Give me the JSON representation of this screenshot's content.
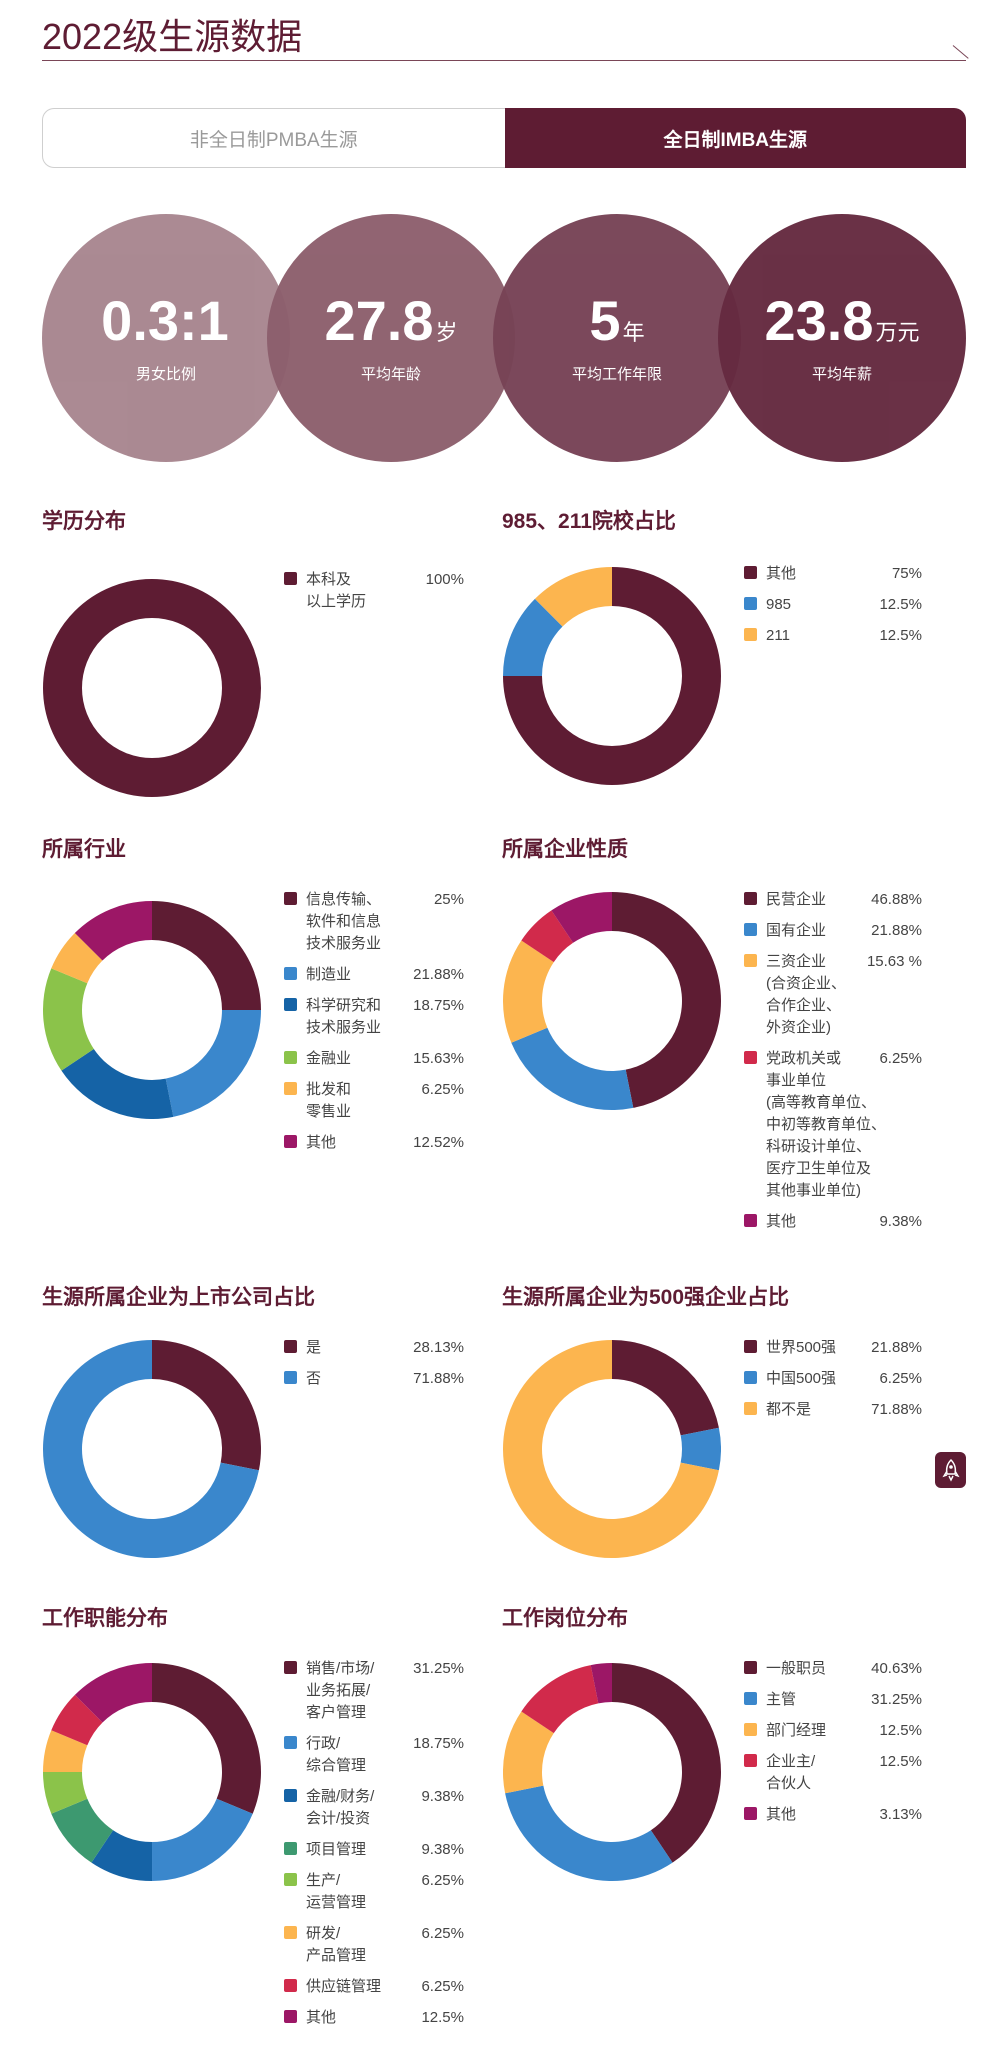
{
  "header": {
    "title": "2022级生源数据"
  },
  "tabs": [
    {
      "label": "非全日制PMBA生源",
      "active": false
    },
    {
      "label": "全日制IMBA生源",
      "active": true
    }
  ],
  "kpis": [
    {
      "value": "0.3:1",
      "unit": "",
      "label": "男女比例",
      "color": "#a8868f"
    },
    {
      "value": "27.8",
      "unit": "岁",
      "label": "平均年龄",
      "color": "#8d5f6d"
    },
    {
      "value": "5",
      "unit": "年",
      "label": "平均工作年限",
      "color": "#774356"
    },
    {
      "value": "23.8",
      "unit": "万元",
      "label": "平均年薪",
      "color": "#652a40"
    }
  ],
  "scroll_button": {
    "icon": "rocket-icon"
  },
  "chart_data": [
    {
      "type": "pie",
      "title": "学历分布",
      "slices": [
        {
          "name": "本科及\n以上学历",
          "value": 100,
          "label": "100%",
          "color": "#5e1c33"
        }
      ]
    },
    {
      "type": "pie",
      "title": "985、211院校占比",
      "slices": [
        {
          "name": "其他",
          "value": 75,
          "label": "75%",
          "color": "#5e1c33"
        },
        {
          "name": "985",
          "value": 12.5,
          "label": "12.5%",
          "color": "#3a87cc"
        },
        {
          "name": "211",
          "value": 12.5,
          "label": "12.5%",
          "color": "#fcb54f"
        }
      ]
    },
    {
      "type": "pie",
      "title": "所属行业",
      "slices": [
        {
          "name": "信息传输、\n软件和信息\n技术服务业",
          "value": 25,
          "label": "25%",
          "color": "#5e1c33"
        },
        {
          "name": "制造业",
          "value": 21.88,
          "label": "21.88%",
          "color": "#3a87cc"
        },
        {
          "name": "科学研究和\n技术服务业",
          "value": 18.75,
          "label": "18.75%",
          "color": "#1563a6"
        },
        {
          "name": "金融业",
          "value": 15.63,
          "label": "15.63%",
          "color": "#8bc34a"
        },
        {
          "name": "批发和\n零售业",
          "value": 6.25,
          "label": "6.25%",
          "color": "#fcb54f"
        },
        {
          "name": "其他",
          "value": 12.52,
          "label": "12.52%",
          "color": "#9c1766"
        }
      ]
    },
    {
      "type": "pie",
      "title": "所属企业性质",
      "slices": [
        {
          "name": "民营企业",
          "value": 46.88,
          "label": "46.88%",
          "color": "#5e1c33"
        },
        {
          "name": "国有企业",
          "value": 21.88,
          "label": "21.88%",
          "color": "#3a87cc"
        },
        {
          "name": "三资企业\n(合资企业、\n合作企业、\n外资企业)",
          "value": 15.63,
          "label": "15.63 %",
          "color": "#fcb54f"
        },
        {
          "name": "党政机关或\n事业单位\n(高等教育单位、\n中初等教育单位、\n科研设计单位、\n医疗卫生单位及\n其他事业单位)",
          "value": 6.25,
          "label": "6.25%",
          "color": "#d12a4b"
        },
        {
          "name": "其他",
          "value": 9.38,
          "label": "9.38%",
          "color": "#9c1766"
        }
      ]
    },
    {
      "type": "pie",
      "title": "生源所属企业为上市公司占比",
      "slices": [
        {
          "name": "是",
          "value": 28.13,
          "label": "28.13%",
          "color": "#5e1c33"
        },
        {
          "name": "否",
          "value": 71.88,
          "label": "71.88%",
          "color": "#3a87cc"
        }
      ]
    },
    {
      "type": "pie",
      "title": "生源所属企业为500强企业占比",
      "slices": [
        {
          "name": "世界500强",
          "value": 21.88,
          "label": "21.88%",
          "color": "#5e1c33"
        },
        {
          "name": "中国500强",
          "value": 6.25,
          "label": "6.25%",
          "color": "#3a87cc"
        },
        {
          "name": "都不是",
          "value": 71.88,
          "label": "71.88%",
          "color": "#fcb54f"
        }
      ]
    },
    {
      "type": "pie",
      "title": "工作职能分布",
      "slices": [
        {
          "name": "销售/市场/\n业务拓展/\n客户管理",
          "value": 31.25,
          "label": "31.25%",
          "color": "#5e1c33"
        },
        {
          "name": "行政/\n综合管理",
          "value": 18.75,
          "label": "18.75%",
          "color": "#3a87cc"
        },
        {
          "name": "金融/财务/\n会计/投资",
          "value": 9.38,
          "label": "9.38%",
          "color": "#1563a6"
        },
        {
          "name": "项目管理",
          "value": 9.38,
          "label": "9.38%",
          "color": "#3d9970"
        },
        {
          "name": "生产/\n运营管理",
          "value": 6.25,
          "label": "6.25%",
          "color": "#8bc34a"
        },
        {
          "name": "研发/\n产品管理",
          "value": 6.25,
          "label": "6.25%",
          "color": "#fcb54f"
        },
        {
          "name": "供应链管理",
          "value": 6.25,
          "label": "6.25%",
          "color": "#d12a4b"
        },
        {
          "name": "其他",
          "value": 12.5,
          "label": "12.5%",
          "color": "#9c1766"
        }
      ]
    },
    {
      "type": "pie",
      "title": "工作岗位分布",
      "slices": [
        {
          "name": "一般职员",
          "value": 40.63,
          "label": "40.63%",
          "color": "#5e1c33"
        },
        {
          "name": "主管",
          "value": 31.25,
          "label": "31.25%",
          "color": "#3a87cc"
        },
        {
          "name": "部门经理",
          "value": 12.5,
          "label": "12.5%",
          "color": "#fcb54f"
        },
        {
          "name": "企业主/\n合伙人",
          "value": 12.5,
          "label": "12.5%",
          "color": "#d12a4b"
        },
        {
          "name": "其他",
          "value": 3.13,
          "label": "3.13%",
          "color": "#9c1766"
        }
      ]
    }
  ]
}
